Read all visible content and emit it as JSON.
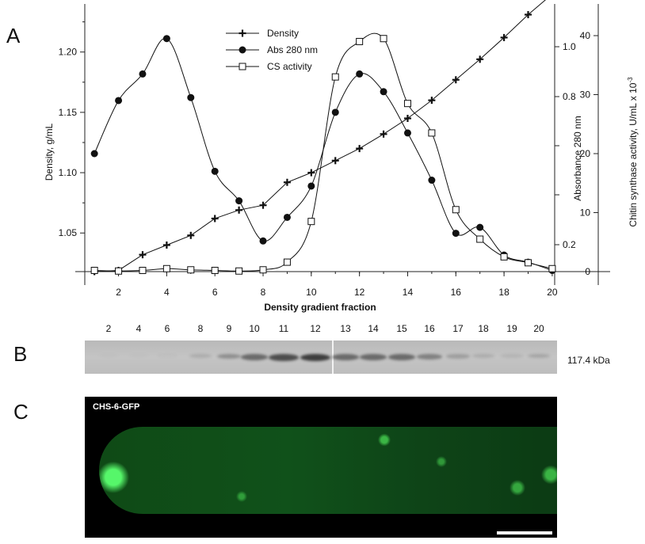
{
  "panels": {
    "a_letter": "A",
    "b_letter": "B",
    "c_letter": "C"
  },
  "chart_data": {
    "type": "line",
    "xlabel": "Density  gradient fraction",
    "x_ticks": [
      "2",
      "4",
      "6",
      "8",
      "10",
      "12",
      "14",
      "16",
      "18",
      "20"
    ],
    "xlim": [
      0.6,
      20.2
    ],
    "left_axis": {
      "label": "Density, g/mL",
      "ticks": [
        "1.05",
        "1.10",
        "1.15",
        "1.20"
      ],
      "ylim": [
        1.018,
        1.23
      ]
    },
    "mid_axis": {
      "label": "Absorbance 280 nm",
      "ticks": [
        "0.2",
        "0.8",
        "1.0"
      ]
    },
    "right_axis": {
      "label": "Chitin synthase activity, U/mL x 10",
      "label_exp": "-3",
      "ticks": [
        "0",
        "10",
        "20",
        "30",
        "40"
      ],
      "ylim": [
        0,
        40
      ]
    },
    "legend_position": "top-center",
    "series": [
      {
        "name": "Density",
        "marker": "plus",
        "x": [
          1,
          2,
          3,
          4,
          5,
          6,
          7,
          8,
          9,
          10,
          11,
          12,
          13,
          14,
          15,
          16,
          17,
          18,
          19,
          20
        ],
        "y": [
          1.018,
          1.019,
          1.032,
          1.04,
          1.048,
          1.062,
          1.069,
          1.073,
          1.092,
          1.1,
          1.11,
          1.12,
          1.132,
          1.145,
          1.16,
          1.177,
          1.194,
          1.212,
          1.231,
          1.248
        ]
      },
      {
        "name": "Abs 280 nm",
        "marker": "filled-circle",
        "x": [
          1,
          2,
          3,
          4,
          5,
          6,
          7,
          8,
          9,
          10,
          11,
          12,
          13,
          14,
          15,
          16,
          17,
          18,
          19,
          20
        ],
        "y_right_units": [
          20,
          29,
          33.5,
          39.5,
          29.5,
          17,
          12,
          5.2,
          9.2,
          14.5,
          27,
          33.5,
          30.5,
          23.5,
          15.5,
          6.5,
          7.5,
          2.8,
          1.6,
          0.2
        ]
      },
      {
        "name": "CS activity",
        "marker": "open-square",
        "x": [
          1,
          2,
          3,
          4,
          5,
          6,
          7,
          8,
          9,
          10,
          11,
          12,
          13,
          14,
          15,
          16,
          17,
          18,
          19,
          20
        ],
        "y": [
          0.2,
          0.1,
          0.2,
          0.5,
          0.3,
          0.2,
          0.1,
          0.3,
          1.6,
          8.5,
          33,
          39,
          39.5,
          28.5,
          23.5,
          10.5,
          5.5,
          2.5,
          1.5,
          0.5
        ]
      }
    ]
  },
  "blot": {
    "lane_labels": [
      "2",
      "4",
      "6",
      "8",
      "9",
      "10",
      "11",
      "12",
      "13",
      "14",
      "15",
      "16",
      "17",
      "18",
      "19",
      "20"
    ],
    "marker_label": "117.4 kDa"
  },
  "micrograph": {
    "label": "CHS-6-GFP"
  }
}
